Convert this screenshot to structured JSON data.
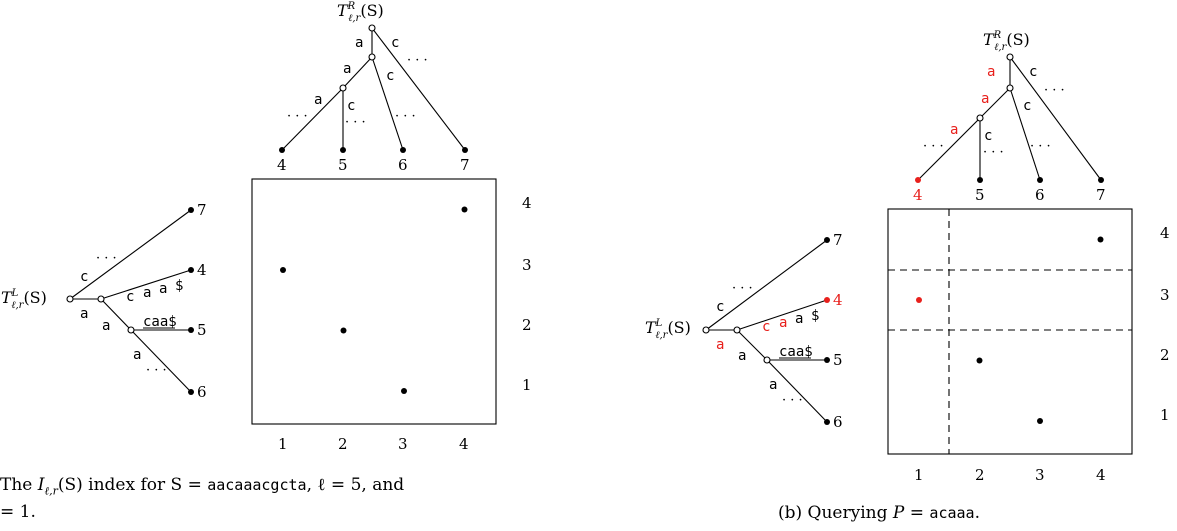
{
  "colors": {
    "ink": "#000000",
    "highlight": "#e8201c"
  },
  "panel_a": {
    "top_tree_label_base": "T",
    "top_tree_label_sub": "ℓ,r",
    "top_tree_label_sup": "R",
    "top_tree_label_arg": "(S)",
    "left_tree_label_base": "T",
    "left_tree_label_sub": "ℓ,r",
    "left_tree_label_sup": "L",
    "left_tree_label_arg": "(S)",
    "top_edges": {
      "a1": "a",
      "c1": "c",
      "a2": "a",
      "c2": "c",
      "a3": "a",
      "c3": "c"
    },
    "top_leaves": [
      "4",
      "5",
      "6",
      "7"
    ],
    "left_edges": {
      "c1": "c",
      "a1": "a",
      "c2": "c",
      "a2": "a",
      "dollar": "$",
      "a3": "a",
      "caa": "caa$",
      "a4": "a"
    },
    "left_leaves": [
      "7",
      "4",
      "5",
      "6"
    ],
    "x_ticks": [
      "1",
      "2",
      "3",
      "4"
    ],
    "y_ticks": [
      "4",
      "3",
      "2",
      "1"
    ],
    "points": [
      {
        "x": 1,
        "y": 3
      },
      {
        "x": 2,
        "y": 2
      },
      {
        "x": 3,
        "y": 1
      },
      {
        "x": 4,
        "y": 4
      }
    ],
    "caption_line1_pre": "The ",
    "caption_index": "I",
    "caption_sub": "ℓ,r",
    "caption_line1_mid": "(S) index for S = ",
    "caption_string": "aacaaacgcta",
    "caption_line1_post": ", ℓ = 5, and",
    "caption_line2": "= 1."
  },
  "panel_b": {
    "top_tree_label_base": "T",
    "top_tree_label_sub": "ℓ,r",
    "top_tree_label_sup": "R",
    "top_tree_label_arg": "(S)",
    "left_tree_label_base": "T",
    "left_tree_label_sub": "ℓ,r",
    "left_tree_label_sup": "L",
    "left_tree_label_arg": "(S)",
    "top_edges": {
      "a1": "a",
      "c1": "c",
      "a2": "a",
      "c2": "c",
      "a3": "a",
      "c3": "c"
    },
    "top_leaves": [
      "4",
      "5",
      "6",
      "7"
    ],
    "left_edges": {
      "c1": "c",
      "a1": "a",
      "c2": "c",
      "a2": "a",
      "dollar": "$",
      "a3": "a",
      "caa": "caa$",
      "a4": "a"
    },
    "left_leaves": [
      "7",
      "4",
      "5",
      "6"
    ],
    "x_ticks": [
      "1",
      "2",
      "3",
      "4"
    ],
    "y_ticks": [
      "4",
      "3",
      "2",
      "1"
    ],
    "points": [
      {
        "x": 1,
        "y": 3,
        "highlight": true
      },
      {
        "x": 2,
        "y": 2
      },
      {
        "x": 3,
        "y": 1
      },
      {
        "x": 4,
        "y": 4
      }
    ],
    "caption_pre": "(b) Querying ",
    "caption_var": "P",
    "caption_eq": " = ",
    "caption_string": "acaaa",
    "caption_post": "."
  },
  "ellipsis": "· · ·"
}
